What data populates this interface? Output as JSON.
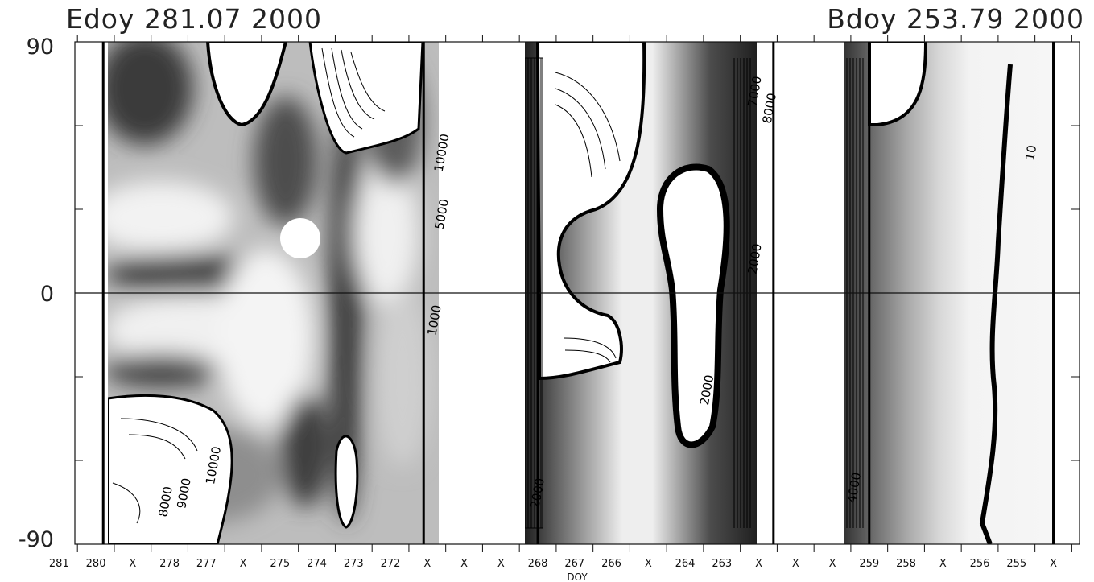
{
  "chart_data": {
    "type": "heatmap",
    "title_left": "Edoy 281.07 2000",
    "title_right": "Bdoy 253.79 2000",
    "xlabel": "DOY",
    "ylabel": "",
    "x_direction": "decreasing",
    "xlim": [
      281.07,
      253.79
    ],
    "ylim": [
      -90,
      90
    ],
    "y_ticks": [
      90,
      0,
      -90
    ],
    "x_tick_labels": [
      "281",
      "280",
      "X",
      "278",
      "277",
      "X",
      "275",
      "274",
      "273",
      "272",
      "X",
      "X",
      "X",
      "268",
      "267",
      "266",
      "X",
      "264",
      "263",
      "X",
      "X",
      "X",
      "259",
      "258",
      "X",
      "256",
      "255",
      "X",
      "X"
    ],
    "x_tick_values": [
      281,
      280,
      279,
      278,
      277,
      276,
      275,
      274,
      273,
      272,
      271,
      270,
      269,
      268,
      267,
      266,
      265,
      264,
      263,
      262,
      261,
      260,
      259,
      258,
      257,
      256,
      255,
      254,
      253
    ],
    "missing_marker": "X",
    "data_segments": [
      [
        280.3,
        271.6
      ],
      [
        268.5,
        262.1
      ],
      [
        259.5,
        254.5
      ]
    ],
    "contour_labels": [
      {
        "text": "10000",
        "x": 271.0,
        "y": 50
      },
      {
        "text": "5000",
        "x": 271.0,
        "y": 28
      },
      {
        "text": "1000",
        "x": 271.2,
        "y": -10
      },
      {
        "text": "8000",
        "x": 278.5,
        "y": -75
      },
      {
        "text": "9000",
        "x": 278.0,
        "y": -72
      },
      {
        "text": "10000",
        "x": 277.2,
        "y": -62
      },
      {
        "text": "7000",
        "x": 262.5,
        "y": 72
      },
      {
        "text": "8000",
        "x": 262.1,
        "y": 66
      },
      {
        "text": "2000",
        "x": 262.5,
        "y": 12
      },
      {
        "text": "4000",
        "x": 259.8,
        "y": -70
      },
      {
        "text": "2000",
        "x": 268.4,
        "y": -72
      },
      {
        "text": "2000",
        "x": 263.8,
        "y": -35
      },
      {
        "text": "10",
        "x": 255.0,
        "y": 50
      }
    ],
    "grid": false,
    "reference_line_y": 0,
    "colors": {
      "background": "#ffffff",
      "dark": "#2e2e2e",
      "light": "#f1f1f1",
      "axis": "#111111"
    }
  }
}
